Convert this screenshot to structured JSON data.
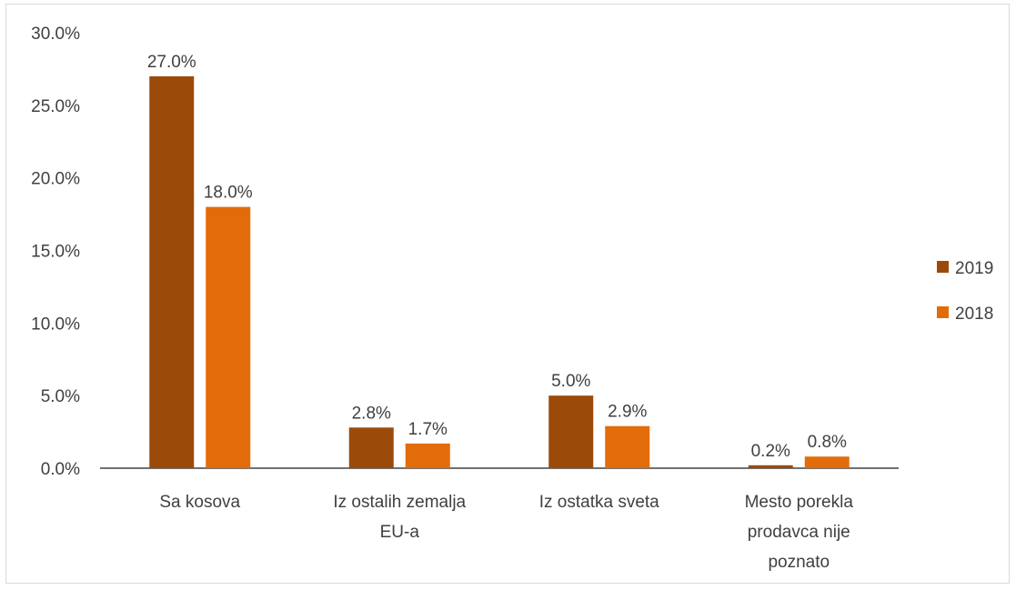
{
  "chart_data": {
    "type": "bar",
    "categories": [
      [
        "Sa kosova"
      ],
      [
        "Iz ostalih zemalja",
        "EU-a"
      ],
      [
        "Iz ostatka sveta"
      ],
      [
        "Mesto porekla",
        "prodavca nije",
        "poznato"
      ]
    ],
    "series": [
      {
        "name": "2019",
        "values": [
          27.0,
          2.8,
          5.0,
          0.2
        ],
        "labels": [
          "27.0%",
          "2.8%",
          "5.0%",
          "0.2%"
        ],
        "color": "#9C4A0A"
      },
      {
        "name": "2018",
        "values": [
          18.0,
          1.7,
          2.9,
          0.8
        ],
        "labels": [
          "18.0%",
          "1.7%",
          "2.9%",
          "0.8%"
        ],
        "color": "#E36C0A"
      }
    ],
    "ylim": [
      0,
      30
    ],
    "yticks": [
      "0.0%",
      "5.0%",
      "10.0%",
      "15.0%",
      "20.0%",
      "25.0%",
      "30.0%"
    ],
    "grid": false,
    "legend_position": "right"
  }
}
